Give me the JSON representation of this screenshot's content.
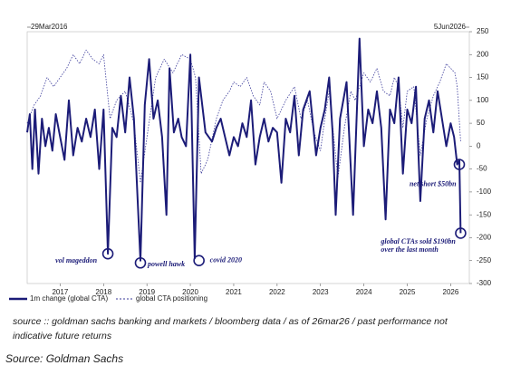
{
  "chart_data": {
    "type": "line",
    "start_label": "29Mar2016",
    "end_label": "5Jun2026",
    "xlim": [
      2016.24,
      2026.43
    ],
    "xticks": [
      2017,
      2018,
      2019,
      2020,
      2021,
      2022,
      2023,
      2024,
      2025,
      2026
    ],
    "ylim": [
      -300,
      250
    ],
    "yticks": [
      -300,
      -250,
      -200,
      -150,
      -100,
      -50,
      0,
      50,
      100,
      150,
      200,
      250
    ],
    "series": [
      {
        "name": "1m change (global CTA)",
        "color": "#1c1c78",
        "style": "solid",
        "x": [
          2016.24,
          2016.3,
          2016.36,
          2016.42,
          2016.5,
          2016.58,
          2016.66,
          2016.74,
          2016.82,
          2016.9,
          2017.0,
          2017.1,
          2017.2,
          2017.3,
          2017.4,
          2017.5,
          2017.6,
          2017.7,
          2017.8,
          2017.9,
          2018.0,
          2018.1,
          2018.2,
          2018.3,
          2018.4,
          2018.5,
          2018.6,
          2018.7,
          2018.85,
          2018.95,
          2019.05,
          2019.15,
          2019.25,
          2019.35,
          2019.45,
          2019.52,
          2019.62,
          2019.72,
          2019.8,
          2019.9,
          2020.0,
          2020.1,
          2020.2,
          2020.35,
          2020.5,
          2020.6,
          2020.7,
          2020.8,
          2020.9,
          2021.0,
          2021.1,
          2021.2,
          2021.3,
          2021.4,
          2021.5,
          2021.6,
          2021.7,
          2021.8,
          2021.9,
          2022.0,
          2022.1,
          2022.2,
          2022.3,
          2022.4,
          2022.5,
          2022.6,
          2022.75,
          2022.9,
          2023.0,
          2023.1,
          2023.2,
          2023.28,
          2023.35,
          2023.45,
          2023.6,
          2023.75,
          2023.9,
          2024.0,
          2024.1,
          2024.2,
          2024.3,
          2024.4,
          2024.5,
          2024.6,
          2024.7,
          2024.8,
          2024.9,
          2025.0,
          2025.1,
          2025.2,
          2025.25,
          2025.3,
          2025.4,
          2025.5,
          2025.6,
          2025.7,
          2025.8,
          2025.9,
          2026.0,
          2026.08,
          2026.15,
          2026.2,
          2026.23
        ],
        "values": [
          30,
          70,
          -50,
          80,
          -60,
          60,
          0,
          40,
          -10,
          70,
          20,
          -30,
          100,
          -20,
          40,
          10,
          60,
          20,
          80,
          -50,
          80,
          -235,
          40,
          20,
          110,
          30,
          150,
          60,
          -250,
          90,
          190,
          60,
          100,
          20,
          -150,
          170,
          30,
          60,
          20,
          0,
          200,
          -245,
          150,
          30,
          10,
          40,
          60,
          20,
          -20,
          20,
          0,
          50,
          20,
          100,
          -40,
          20,
          60,
          10,
          40,
          30,
          -80,
          60,
          30,
          110,
          -20,
          80,
          120,
          -20,
          40,
          80,
          150,
          30,
          -150,
          60,
          140,
          -150,
          235,
          0,
          80,
          50,
          120,
          40,
          -160,
          80,
          50,
          150,
          -60,
          80,
          50,
          130,
          0,
          -120,
          60,
          100,
          30,
          120,
          60,
          0,
          50,
          20,
          -40,
          -30,
          -190
        ]
      },
      {
        "name": "global CTA positioning",
        "color": "#3a3a9a",
        "style": "dotted",
        "x": [
          2016.24,
          2016.4,
          2016.55,
          2016.7,
          2016.85,
          2017.0,
          2017.15,
          2017.3,
          2017.45,
          2017.6,
          2017.75,
          2017.9,
          2018.0,
          2018.15,
          2018.3,
          2018.5,
          2018.7,
          2018.85,
          2019.0,
          2019.2,
          2019.4,
          2019.6,
          2019.8,
          2020.0,
          2020.12,
          2020.25,
          2020.4,
          2020.6,
          2020.75,
          2020.9,
          2021.0,
          2021.15,
          2021.3,
          2021.45,
          2021.6,
          2021.7,
          2021.85,
          2022.0,
          2022.2,
          2022.4,
          2022.55,
          2022.7,
          2022.85,
          2023.0,
          2023.1,
          2023.2,
          2023.4,
          2023.55,
          2023.7,
          2023.8,
          2024.0,
          2024.15,
          2024.3,
          2024.45,
          2024.6,
          2024.7,
          2024.8,
          2024.9,
          2025.0,
          2025.15,
          2025.3,
          2025.45,
          2025.6,
          2025.75,
          2025.9,
          2026.0,
          2026.1,
          2026.15,
          2026.23
        ],
        "values": [
          50,
          90,
          110,
          150,
          130,
          150,
          170,
          200,
          180,
          210,
          190,
          180,
          200,
          60,
          100,
          120,
          50,
          -80,
          20,
          150,
          190,
          160,
          200,
          190,
          150,
          -60,
          -30,
          60,
          100,
          120,
          140,
          130,
          150,
          110,
          90,
          140,
          120,
          60,
          100,
          130,
          60,
          100,
          30,
          -10,
          60,
          120,
          -70,
          40,
          120,
          100,
          160,
          140,
          170,
          120,
          110,
          150,
          130,
          40,
          120,
          130,
          -20,
          60,
          110,
          140,
          180,
          170,
          160,
          130,
          10
        ]
      }
    ],
    "annotations": [
      {
        "text": "vol mageddon",
        "x": 2018.1,
        "y": -235
      },
      {
        "text": "powell hawk",
        "x": 2018.85,
        "y": -255
      },
      {
        "text": "covid 2020",
        "x": 2020.2,
        "y": -250
      },
      {
        "text": "net short $50bn",
        "x": 2026.2,
        "y": -40
      },
      {
        "text": [
          "global CTAs sold $190bn",
          "over the last month"
        ],
        "x": 2026.23,
        "y": -190
      }
    ],
    "caption": [
      "source :: goldman sachs banking and markets / bloomberg data / as of 26mar26 / past performance not",
      "indicative future returns"
    ],
    "source": "Source: Goldman Sachs"
  }
}
